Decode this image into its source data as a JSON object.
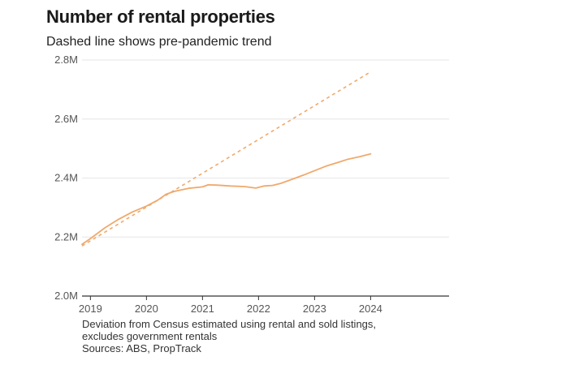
{
  "chart_data": {
    "type": "line",
    "title": "Number of rental properties",
    "subtitle": "Dashed line shows pre-pandemic trend",
    "xlabel": "",
    "ylabel": "",
    "xlim": [
      2018.85,
      2025.4
    ],
    "ylim": [
      2.0,
      2.8
    ],
    "x_ticks": [
      2019,
      2020,
      2021,
      2022,
      2023,
      2024
    ],
    "y_ticks": [
      {
        "value": 2.0,
        "label": "2.0M"
      },
      {
        "value": 2.2,
        "label": "2.2M"
      },
      {
        "value": 2.4,
        "label": "2.4M"
      },
      {
        "value": 2.6,
        "label": "2.6M"
      },
      {
        "value": 2.8,
        "label": "2.8M"
      }
    ],
    "grid": "horizontal",
    "color": "#f0a96c",
    "series": [
      {
        "name": "Rental properties",
        "style": "solid",
        "x": [
          2018.85,
          2019.0,
          2019.25,
          2019.5,
          2019.75,
          2020.0,
          2020.2,
          2020.35,
          2020.5,
          2020.75,
          2021.0,
          2021.1,
          2021.25,
          2021.5,
          2021.75,
          2021.95,
          2022.1,
          2022.25,
          2022.4,
          2022.6,
          2022.8,
          2023.0,
          2023.2,
          2023.4,
          2023.6,
          2023.8,
          2024.0
        ],
        "values": [
          2.175,
          2.195,
          2.23,
          2.26,
          2.285,
          2.305,
          2.325,
          2.345,
          2.355,
          2.365,
          2.37,
          2.377,
          2.376,
          2.373,
          2.371,
          2.366,
          2.373,
          2.375,
          2.382,
          2.396,
          2.41,
          2.425,
          2.44,
          2.452,
          2.464,
          2.472,
          2.482
        ]
      },
      {
        "name": "Pre-pandemic trend",
        "style": "dashed",
        "x": [
          2018.85,
          2024.0
        ],
        "values": [
          2.17,
          2.76
        ]
      }
    ]
  },
  "footnote": {
    "line1": "Deviation from Census estimated using rental and sold listings,",
    "line2": "excludes government rentals",
    "sources": "Sources: ABS, PropTrack"
  }
}
